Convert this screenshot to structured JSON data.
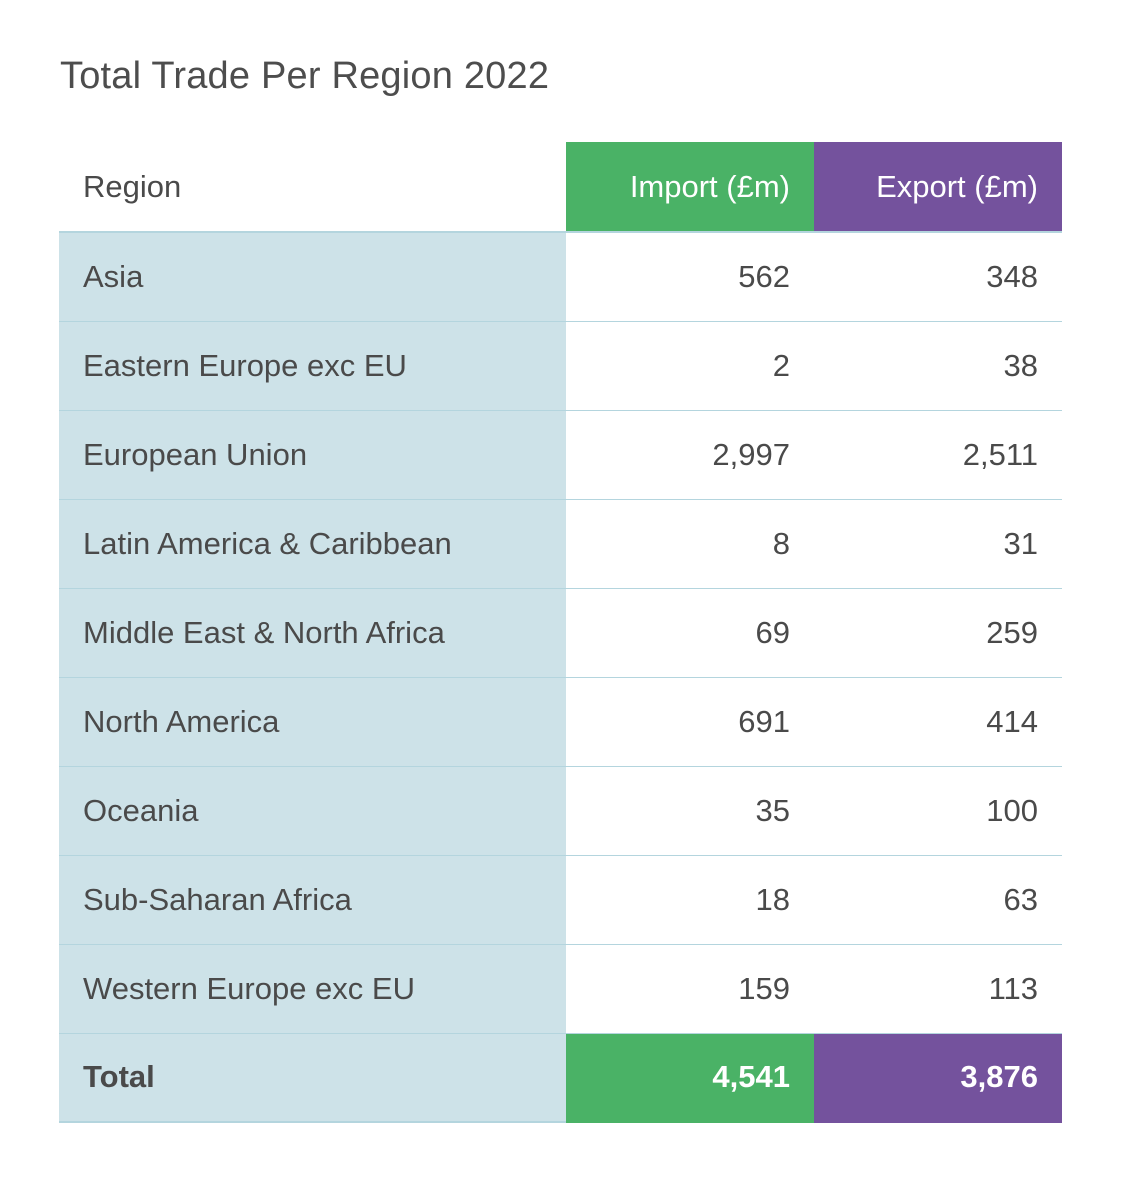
{
  "title": "Total Trade Per Region 2022",
  "colors": {
    "import": "#4ab266",
    "export": "#74529d",
    "region_column": "#cde2e8",
    "divider": "#b4d5de"
  },
  "chart_data": {
    "type": "table",
    "title": "Total Trade Per Region 2022",
    "columns": [
      "Region",
      "Import (£m)",
      "Export (£m)"
    ],
    "rows": [
      {
        "region": "Asia",
        "import": "562",
        "export": "348"
      },
      {
        "region": "Eastern Europe exc EU",
        "import": "2",
        "export": "38"
      },
      {
        "region": "European Union",
        "import": "2,997",
        "export": "2,511"
      },
      {
        "region": "Latin America & Caribbean",
        "import": "8",
        "export": "31"
      },
      {
        "region": "Middle East & North Africa",
        "import": "69",
        "export": "259"
      },
      {
        "region": "North America",
        "import": "691",
        "export": "414"
      },
      {
        "region": "Oceania",
        "import": "35",
        "export": "100"
      },
      {
        "region": "Sub-Saharan Africa",
        "import": "18",
        "export": "63"
      },
      {
        "region": "Western Europe exc EU",
        "import": "159",
        "export": "113"
      }
    ],
    "total": {
      "label": "Total",
      "import": "4,541",
      "export": "3,876"
    }
  }
}
